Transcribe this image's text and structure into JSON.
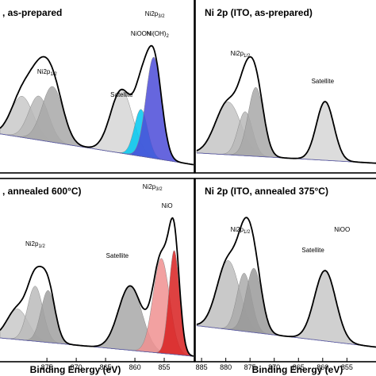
{
  "chart_data": [
    {
      "type": "line",
      "title": ", as-prepared",
      "xlabel": "",
      "ylabel": "",
      "xlim": [
        884,
        849
      ],
      "x_ticks": [],
      "annotations": [
        {
          "text": "Ni2p",
          "sub": "1/2",
          "x": 875.5
        },
        {
          "text": "Ni2p",
          "sub": "3/2",
          "x": 856
        },
        {
          "text": "NiOOH",
          "x": 858.5
        },
        {
          "text": "Ni(OH)",
          "sub": "2",
          "x": 855.5
        },
        {
          "text": "Satellite",
          "x": 862
        }
      ],
      "peaks": [
        {
          "center": 880,
          "height": 0.28,
          "sigma": 2.0,
          "color": "#c9c9c9"
        },
        {
          "center": 877,
          "height": 0.3,
          "sigma": 1.8,
          "color": "#b9b9b9"
        },
        {
          "center": 874.5,
          "height": 0.38,
          "sigma": 1.9,
          "color": "#a8a8a8"
        },
        {
          "center": 862,
          "height": 0.43,
          "sigma": 2.0,
          "color": "#d6d6d6"
        },
        {
          "center": 858.5,
          "height": 0.32,
          "sigma": 1.2,
          "color": "#00c8f0"
        },
        {
          "center": 856.2,
          "height": 0.69,
          "sigma": 1.4,
          "color": "#4b4bd8"
        }
      ],
      "background": {
        "left": 0.25,
        "right": 0.04
      }
    },
    {
      "type": "line",
      "title": "Ni 2p (ITO, as-prepared)",
      "xlabel": "",
      "ylabel": "",
      "xlim": [
        886,
        849
      ],
      "x_ticks": [],
      "annotations": [
        {
          "text": "Ni2p",
          "sub": "1/2",
          "x": 877
        },
        {
          "text": "Satellite",
          "x": 860
        }
      ],
      "peaks": [
        {
          "center": 879.5,
          "height": 0.36,
          "sigma": 2.6,
          "color": "#c6c6c6"
        },
        {
          "center": 876,
          "height": 0.3,
          "sigma": 1.5,
          "color": "#b9b9b9"
        },
        {
          "center": 873.8,
          "height": 0.47,
          "sigma": 1.6,
          "color": "#a8a8a8"
        },
        {
          "center": 859.5,
          "height": 0.4,
          "sigma": 1.8,
          "color": "#d6d6d6"
        }
      ],
      "background": {
        "left": 0.12,
        "right": 0.05
      }
    },
    {
      "type": "line",
      "title": ", annealed 600°C)",
      "xlabel": "Binding Energy (eV)",
      "ylabel": "",
      "xlim": [
        883,
        850
      ],
      "x_ticks": [
        875,
        870,
        865,
        860,
        855
      ],
      "annotations": [
        {
          "text": "Ni2p",
          "sub": "1/2",
          "x": 877
        },
        {
          "text": "Ni2p",
          "sub": "3/2",
          "x": 857
        },
        {
          "text": "Satellite",
          "x": 863
        },
        {
          "text": "NiO",
          "x": 854.5
        }
      ],
      "peaks": [
        {
          "center": 880,
          "height": 0.2,
          "sigma": 1.8,
          "color": "#c9c9c9"
        },
        {
          "center": 877,
          "height": 0.36,
          "sigma": 1.3,
          "color": "#bbbbbb"
        },
        {
          "center": 874.8,
          "height": 0.34,
          "sigma": 1.2,
          "color": "#a0a0a0"
        },
        {
          "center": 860.8,
          "height": 0.42,
          "sigma": 2.0,
          "color": "#a8a8a8"
        },
        {
          "center": 855.5,
          "height": 0.62,
          "sigma": 1.4,
          "color": "#f09090"
        },
        {
          "center": 853.3,
          "height": 0.68,
          "sigma": 0.9,
          "color": "#d82020"
        }
      ],
      "background": {
        "left": 0.14,
        "right": 0.02
      }
    },
    {
      "type": "line",
      "title": "Ni 2p (ITO, annealed 375°C)",
      "xlabel": "Binding Energy (eV)",
      "ylabel": "",
      "xlim": [
        886,
        849
      ],
      "x_ticks": [
        885,
        880,
        875,
        870,
        865,
        860,
        855
      ],
      "annotations": [
        {
          "text": "Ni2p",
          "sub": "1/2",
          "x": 877
        },
        {
          "text": "Satellite",
          "x": 862
        },
        {
          "text": "NiOO",
          "x": 856
        }
      ],
      "peaks": [
        {
          "center": 879.5,
          "height": 0.45,
          "sigma": 2.3,
          "color": "#c0c0c0"
        },
        {
          "center": 876.2,
          "height": 0.38,
          "sigma": 1.5,
          "color": "#aaaaaa"
        },
        {
          "center": 874.2,
          "height": 0.42,
          "sigma": 1.6,
          "color": "#9a9a9a"
        },
        {
          "center": 859.5,
          "height": 0.46,
          "sigma": 2.2,
          "color": "#c8c8c8"
        }
      ],
      "background": {
        "left": 0.22,
        "right": 0.08
      }
    }
  ]
}
